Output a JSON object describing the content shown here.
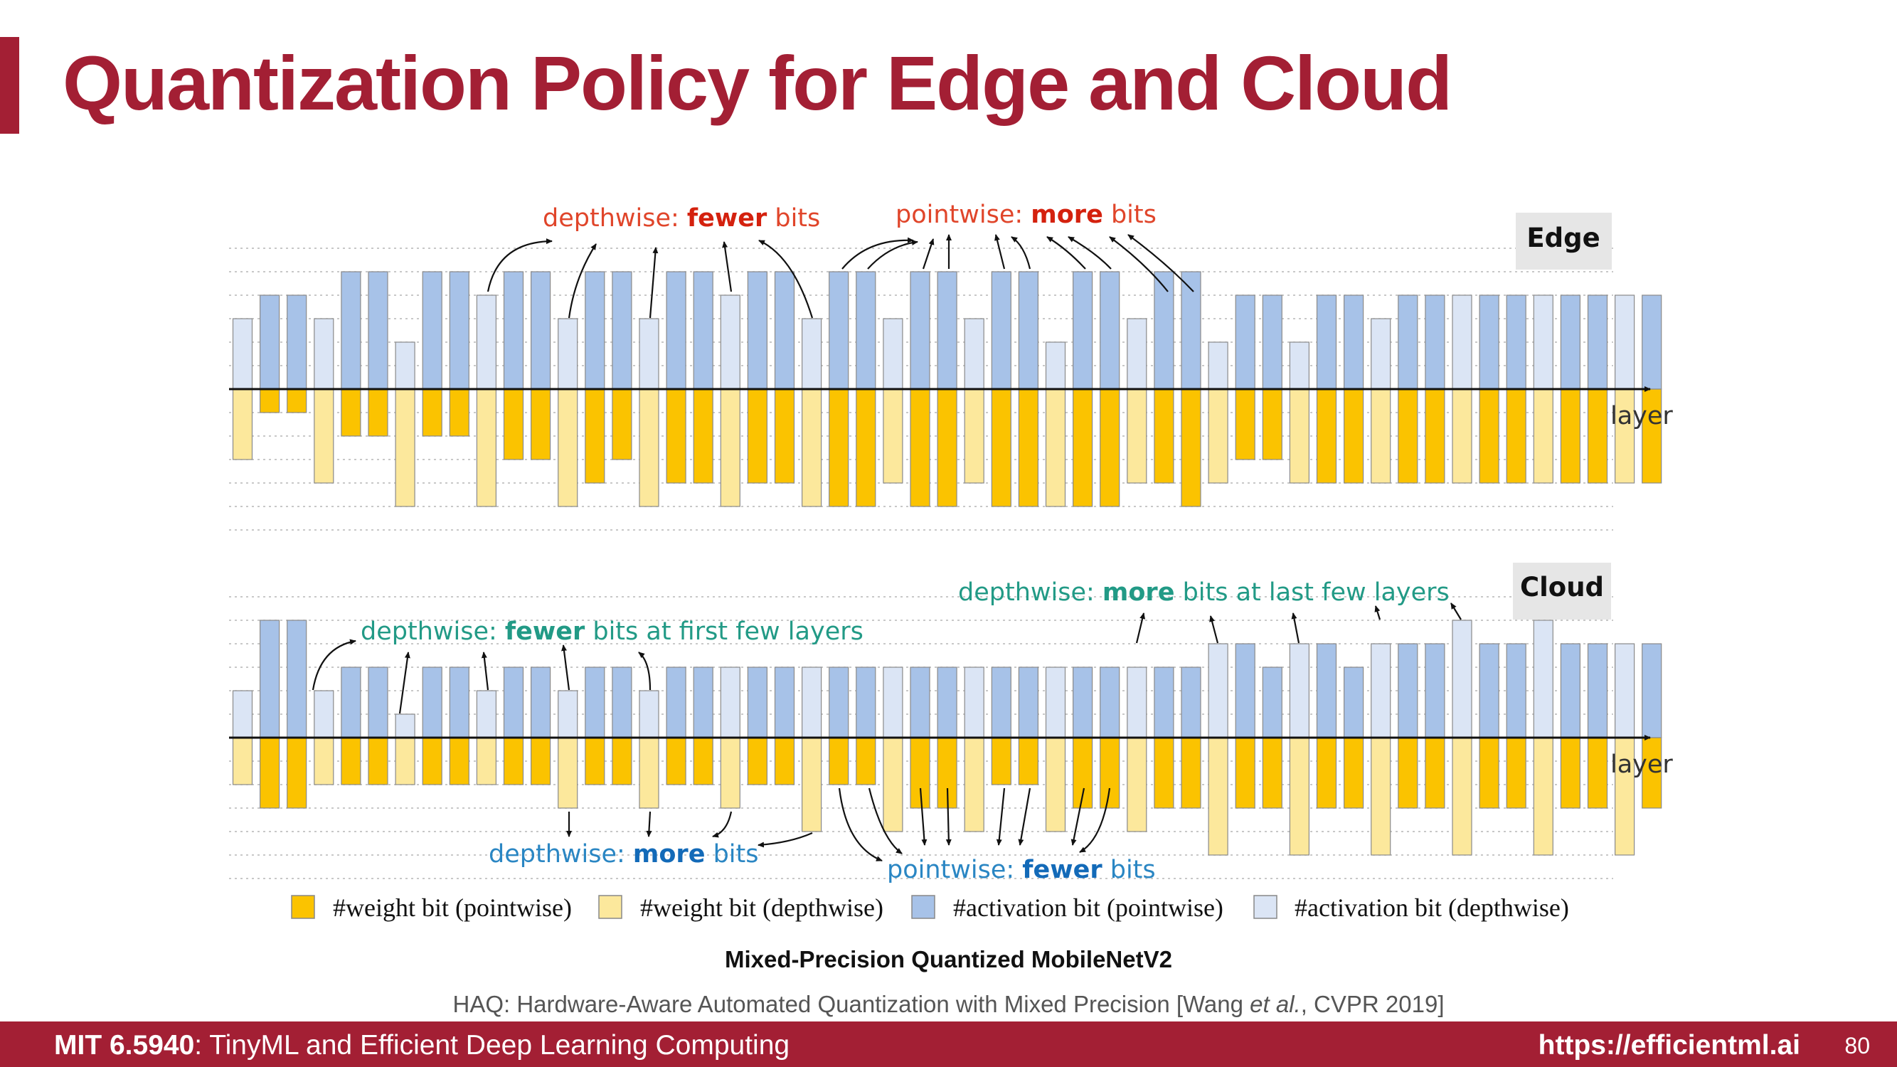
{
  "slide": {
    "title": "Quantization Policy for Edge and Cloud",
    "caption": "Mixed-Precision Quantized MobileNetV2",
    "reference_pre": "HAQ: Hardware-Aware Automated Quantization with Mixed Precision [Wang ",
    "reference_italic": "et al.",
    "reference_post": ", CVPR 2019]",
    "footer_course_code": "MIT 6.5940",
    "footer_course_name": ": TinyML and Efficient Deep Learning Computing",
    "footer_url": "https://efficientml.ai",
    "page_number": "80"
  },
  "colors": {
    "accent": "#a31f34",
    "weight_pointwise": "#fbc300",
    "weight_depthwise": "#fce89c",
    "activation_pointwise": "#a7c2e8",
    "activation_depthwise": "#dbe5f5",
    "red_annotation": "#e0452a",
    "red_bold": "#d4210e",
    "teal_annotation": "#229a86",
    "blue_annotation": "#2a86c3",
    "blue_bold": "#136ab8"
  },
  "legend": [
    {
      "label": "#weight bit (pointwise)",
      "color_key": "weight_pointwise"
    },
    {
      "label": "#weight bit (depthwise)",
      "color_key": "weight_depthwise"
    },
    {
      "label": "#activation bit (pointwise)",
      "color_key": "activation_pointwise"
    },
    {
      "label": "#activation bit (depthwise)",
      "color_key": "activation_depthwise"
    }
  ],
  "chart_data": [
    {
      "type": "bar",
      "panel": "Edge",
      "xlabel": "layer",
      "layer_kind": [
        "d",
        "p",
        "p",
        "d",
        "p",
        "p",
        "d",
        "p",
        "p",
        "d",
        "p",
        "p",
        "d",
        "p",
        "p",
        "d",
        "p",
        "p",
        "d",
        "p",
        "p",
        "d",
        "p",
        "p",
        "d",
        "p",
        "p",
        "d",
        "p",
        "p",
        "d",
        "p",
        "p",
        "d",
        "p",
        "p",
        "d",
        "p",
        "p",
        "d",
        "p",
        "p",
        "d",
        "p",
        "p",
        "d",
        "p",
        "p",
        "d",
        "p",
        "p",
        "d",
        "p"
      ],
      "activation_bits": [
        3,
        4,
        4,
        3,
        5,
        5,
        2,
        5,
        5,
        4,
        5,
        5,
        3,
        5,
        5,
        3,
        5,
        5,
        4,
        5,
        5,
        3,
        5,
        5,
        3,
        5,
        5,
        3,
        5,
        5,
        2,
        5,
        5,
        3,
        5,
        5,
        2,
        4,
        4,
        2,
        4,
        4,
        3,
        4,
        4,
        4,
        4,
        4,
        4,
        4,
        4,
        4,
        4
      ],
      "weight_bits": [
        3,
        1,
        1,
        4,
        2,
        2,
        5,
        2,
        2,
        5,
        3,
        3,
        5,
        4,
        3,
        5,
        4,
        4,
        5,
        4,
        4,
        5,
        5,
        5,
        4,
        5,
        5,
        4,
        5,
        5,
        5,
        5,
        5,
        4,
        4,
        5,
        4,
        3,
        3,
        4,
        4,
        4,
        4,
        4,
        4,
        4,
        4,
        4,
        4,
        4,
        4,
        4,
        4
      ],
      "annotations": [
        {
          "pre": "depthwise: ",
          "bold": "fewer",
          "post": " bits"
        },
        {
          "pre": "pointwise: ",
          "bold": "more",
          "post": " bits"
        }
      ]
    },
    {
      "type": "bar",
      "panel": "Cloud",
      "xlabel": "layer",
      "layer_kind": [
        "d",
        "p",
        "p",
        "d",
        "p",
        "p",
        "d",
        "p",
        "p",
        "d",
        "p",
        "p",
        "d",
        "p",
        "p",
        "d",
        "p",
        "p",
        "d",
        "p",
        "p",
        "d",
        "p",
        "p",
        "d",
        "p",
        "p",
        "d",
        "p",
        "p",
        "d",
        "p",
        "p",
        "d",
        "p",
        "p",
        "d",
        "p",
        "p",
        "d",
        "p",
        "p",
        "d",
        "p",
        "p",
        "d",
        "p",
        "p",
        "d",
        "p",
        "p",
        "d",
        "p"
      ],
      "activation_bits": [
        2,
        5,
        5,
        2,
        3,
        3,
        1,
        3,
        3,
        2,
        3,
        3,
        2,
        3,
        3,
        2,
        3,
        3,
        3,
        3,
        3,
        3,
        3,
        3,
        3,
        3,
        3,
        3,
        3,
        3,
        3,
        3,
        3,
        3,
        3,
        3,
        4,
        4,
        3,
        4,
        4,
        3,
        4,
        4,
        4,
        5,
        4,
        4,
        5,
        4,
        4,
        4,
        4
      ],
      "weight_bits": [
        2,
        3,
        3,
        2,
        2,
        2,
        2,
        2,
        2,
        2,
        2,
        2,
        3,
        2,
        2,
        3,
        2,
        2,
        3,
        2,
        2,
        4,
        2,
        2,
        4,
        3,
        3,
        4,
        2,
        2,
        4,
        3,
        3,
        4,
        3,
        3,
        5,
        3,
        3,
        5,
        3,
        3,
        5,
        3,
        3,
        5,
        3,
        3,
        5,
        3,
        3,
        5,
        3
      ],
      "annotations": [
        {
          "pre": "depthwise: ",
          "bold": "fewer",
          "post": " bits at first few layers"
        },
        {
          "pre": "depthwise: ",
          "bold": "more",
          "post": " bits at last few layers"
        },
        {
          "pre": "depthwise: ",
          "bold": "more",
          "post": " bits"
        },
        {
          "pre": "pointwise: ",
          "bold": "fewer",
          "post": " bits"
        }
      ]
    }
  ]
}
